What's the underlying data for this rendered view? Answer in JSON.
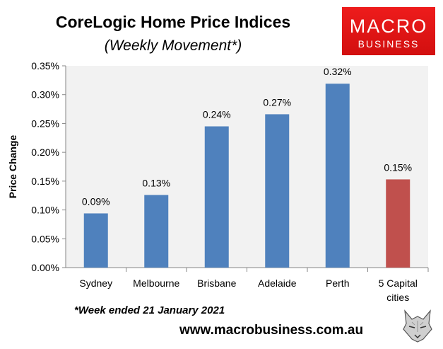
{
  "header": {
    "title": "CoreLogic Home Price Indices",
    "subtitle": "(Weekly Movement*)"
  },
  "logo": {
    "line1": "MACRO",
    "line2": "BUSINESS",
    "color": "#e31414"
  },
  "chart_data": {
    "type": "bar",
    "title": "CoreLogic Home Price Indices",
    "subtitle": "(Weekly Movement*)",
    "categories": [
      "Sydney",
      "Melbourne",
      "Brisbane",
      "Adelaide",
      "Perth",
      "5 Capital cities"
    ],
    "category_lines": [
      [
        "Sydney"
      ],
      [
        "Melbourne"
      ],
      [
        "Brisbane"
      ],
      [
        "Adelaide"
      ],
      [
        "Perth"
      ],
      [
        "5 Capital",
        "cities"
      ]
    ],
    "values": [
      0.094,
      0.126,
      0.245,
      0.266,
      0.319,
      0.153
    ],
    "value_labels": [
      "0.09%",
      "0.13%",
      "0.24%",
      "0.27%",
      "0.32%",
      "0.15%"
    ],
    "bar_colors": [
      "#4f81bd",
      "#4f81bd",
      "#4f81bd",
      "#4f81bd",
      "#4f81bd",
      "#c0504d"
    ],
    "ylabel": "Price Change",
    "xlabel": "",
    "ylim": [
      0,
      0.35
    ],
    "yticks": [
      0,
      0.05,
      0.1,
      0.15,
      0.2,
      0.25,
      0.3,
      0.35
    ],
    "ytick_labels": [
      "0.00%",
      "0.05%",
      "0.10%",
      "0.15%",
      "0.20%",
      "0.25%",
      "0.30%",
      "0.35%"
    ],
    "grid": false,
    "plot_background": "#f2f2f2"
  },
  "footer": {
    "footnote": "*Week ended 21 January 2021",
    "website": "www.macrobusiness.com.au"
  }
}
